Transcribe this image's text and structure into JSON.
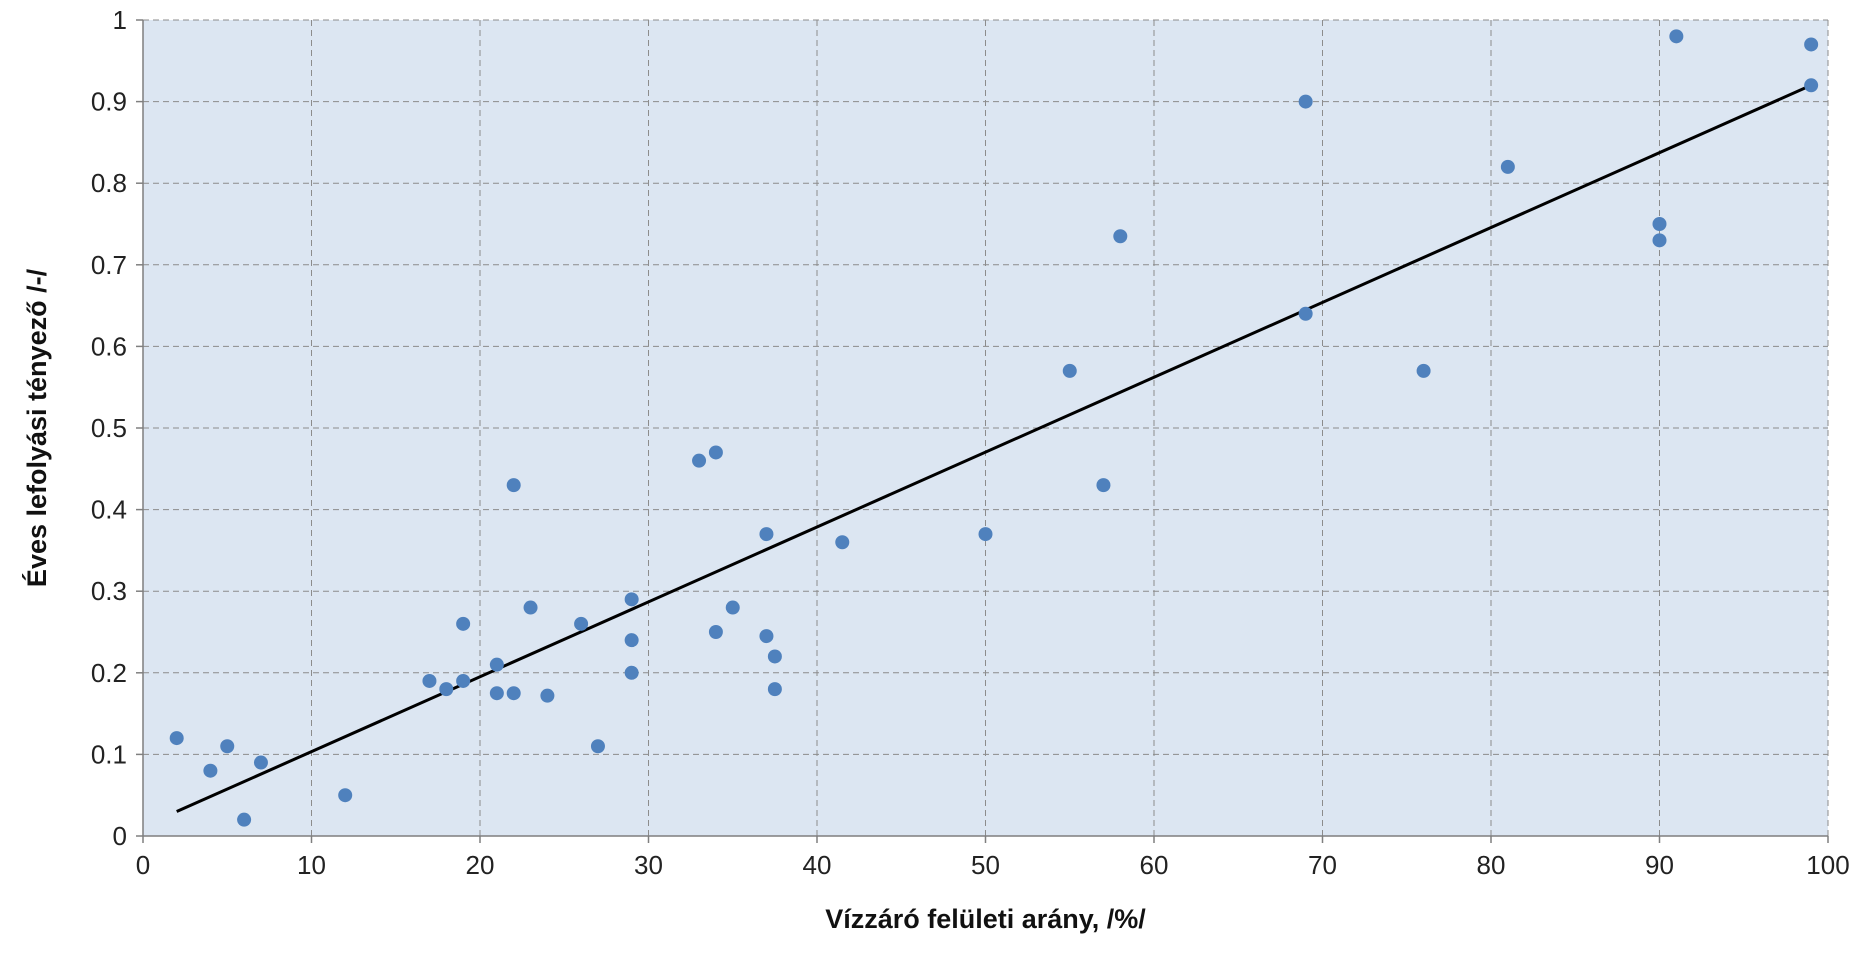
{
  "chart_data": {
    "type": "scatter",
    "title": "",
    "xlabel": "Vízzáró felületi arány, /%/",
    "ylabel": "Éves lefolyási tényező /-/",
    "xlim": [
      0,
      100
    ],
    "ylim": [
      0,
      1
    ],
    "x_ticks": [
      0,
      10,
      20,
      30,
      40,
      50,
      60,
      70,
      80,
      90,
      100
    ],
    "y_ticks": [
      0,
      0.1,
      0.2,
      0.3,
      0.4,
      0.5,
      0.6,
      0.7,
      0.8,
      0.9,
      1
    ],
    "x_tick_labels": [
      "0",
      "10",
      "20",
      "30",
      "40",
      "50",
      "60",
      "70",
      "80",
      "90",
      "100"
    ],
    "y_tick_labels": [
      "0",
      "0.1",
      "0.2",
      "0.3",
      "0.4",
      "0.5",
      "0.6",
      "0.7",
      "0.8",
      "0.9",
      "1"
    ],
    "grid": true,
    "legend": "none",
    "colors": {
      "plot_background": "#dce6f2",
      "grid": "#8c8c8c",
      "points": "#4f81bd",
      "trendline": "#000000",
      "axis": "#7f7f7f"
    },
    "series": [
      {
        "points": [
          [
            2,
            0.12
          ],
          [
            4,
            0.08
          ],
          [
            5,
            0.11
          ],
          [
            6,
            0.02
          ],
          [
            7,
            0.09
          ],
          [
            12,
            0.05
          ],
          [
            17,
            0.19
          ],
          [
            18,
            0.18
          ],
          [
            19,
            0.26
          ],
          [
            19,
            0.19
          ],
          [
            21,
            0.21
          ],
          [
            21,
            0.175
          ],
          [
            22,
            0.43
          ],
          [
            22,
            0.175
          ],
          [
            23,
            0.28
          ],
          [
            24,
            0.172
          ],
          [
            26,
            0.26
          ],
          [
            27,
            0.11
          ],
          [
            29,
            0.29
          ],
          [
            29,
            0.24
          ],
          [
            29,
            0.2
          ],
          [
            33,
            0.46
          ],
          [
            34,
            0.47
          ],
          [
            34,
            0.25
          ],
          [
            35,
            0.28
          ],
          [
            37,
            0.37
          ],
          [
            37,
            0.245
          ],
          [
            37.5,
            0.22
          ],
          [
            37.5,
            0.18
          ],
          [
            41.5,
            0.36
          ],
          [
            50,
            0.37
          ],
          [
            55,
            0.57
          ],
          [
            57,
            0.43
          ],
          [
            58,
            0.735
          ],
          [
            69,
            0.9
          ],
          [
            69,
            0.64
          ],
          [
            76,
            0.57
          ],
          [
            81,
            0.82
          ],
          [
            90,
            0.75
          ],
          [
            90,
            0.73
          ],
          [
            91,
            0.98
          ],
          [
            99,
            0.97
          ],
          [
            99,
            0.92
          ]
        ]
      }
    ],
    "trendline": {
      "x": [
        2,
        99
      ],
      "y": [
        0.03,
        0.92
      ]
    }
  }
}
